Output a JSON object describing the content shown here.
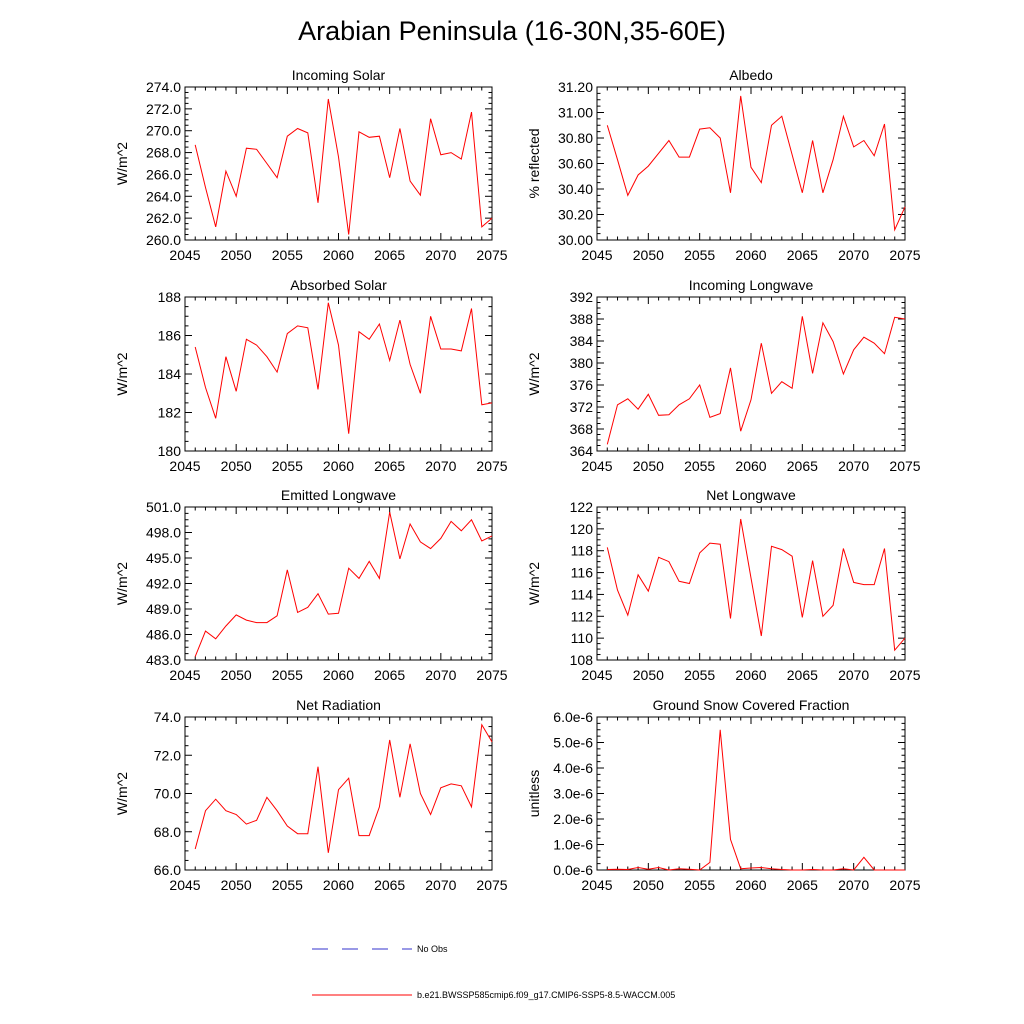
{
  "page": {
    "title": "Arabian Peninsula (16-30N,35-60E)",
    "line_color": "#ff0000",
    "obs_color": "#3333cc"
  },
  "legend": [
    {
      "label": "No Obs",
      "style": "dashed",
      "color": "#3333cc"
    },
    {
      "label": "b.e21.BWSSP585cmip6.f09_g17.CMIP6-SSP5-8.5-WACCM.005",
      "style": "solid",
      "color": "#ff0000"
    }
  ],
  "chart_data": [
    {
      "type": "line",
      "title": "Incoming Solar",
      "xlabel": "",
      "ylabel": "W/m^2",
      "xlim": [
        2045,
        2075
      ],
      "ylim": [
        260,
        274
      ],
      "xticks": [
        2045,
        2050,
        2055,
        2060,
        2065,
        2070,
        2075
      ],
      "yticks": [
        "260.0",
        "262.0",
        "264.0",
        "266.0",
        "268.0",
        "270.0",
        "272.0",
        "274.0"
      ],
      "series": [
        {
          "name": "b.e21.BWSSP585cmip6.f09_g17.CMIP6-SSP5-8.5-WACCM.005",
          "x": [
            2046,
            2047,
            2048,
            2049,
            2050,
            2051,
            2052,
            2053,
            2054,
            2055,
            2056,
            2057,
            2058,
            2059,
            2060,
            2061,
            2062,
            2063,
            2064,
            2065,
            2066,
            2067,
            2068,
            2069,
            2070,
            2071,
            2072,
            2073,
            2074,
            2075
          ],
          "values": [
            268.7,
            264.8,
            261.2,
            266.3,
            264.0,
            268.4,
            268.3,
            267.0,
            265.7,
            269.5,
            270.2,
            269.8,
            263.4,
            272.9,
            267.6,
            260.5,
            269.9,
            269.4,
            269.5,
            265.7,
            270.2,
            265.4,
            264.1,
            271.1,
            267.8,
            268.0,
            267.4,
            271.7,
            261.2,
            262.0
          ]
        }
      ]
    },
    {
      "type": "line",
      "title": "Albedo",
      "xlabel": "",
      "ylabel": "% reflected",
      "xlim": [
        2045,
        2075
      ],
      "ylim": [
        30.0,
        31.2
      ],
      "xticks": [
        2045,
        2050,
        2055,
        2060,
        2065,
        2070,
        2075
      ],
      "yticks": [
        "30.00",
        "30.20",
        "30.40",
        "30.60",
        "30.80",
        "31.00",
        "31.20"
      ],
      "series": [
        {
          "name": "b.e21.BWSSP585cmip6.f09_g17.CMIP6-SSP5-8.5-WACCM.005",
          "x": [
            2046,
            2047,
            2048,
            2049,
            2050,
            2051,
            2052,
            2053,
            2054,
            2055,
            2056,
            2057,
            2058,
            2059,
            2060,
            2061,
            2062,
            2063,
            2064,
            2065,
            2066,
            2067,
            2068,
            2069,
            2070,
            2071,
            2072,
            2073,
            2074,
            2075
          ],
          "values": [
            30.9,
            30.63,
            30.35,
            30.51,
            30.58,
            30.68,
            30.78,
            30.65,
            30.65,
            30.87,
            30.88,
            30.8,
            30.37,
            31.13,
            30.57,
            30.45,
            30.9,
            30.97,
            30.67,
            30.37,
            30.78,
            30.37,
            30.63,
            30.97,
            30.73,
            30.78,
            30.66,
            30.91,
            30.08,
            30.26
          ]
        }
      ]
    },
    {
      "type": "line",
      "title": "Absorbed Solar",
      "xlabel": "",
      "ylabel": "W/m^2",
      "xlim": [
        2045,
        2075
      ],
      "ylim": [
        180,
        188
      ],
      "xticks": [
        2045,
        2050,
        2055,
        2060,
        2065,
        2070,
        2075
      ],
      "yticks": [
        "180",
        "182",
        "184",
        "186",
        "188"
      ],
      "series": [
        {
          "name": "b.e21.BWSSP585cmip6.f09_g17.CMIP6-SSP5-8.5-WACCM.005",
          "x": [
            2046,
            2047,
            2048,
            2049,
            2050,
            2051,
            2052,
            2053,
            2054,
            2055,
            2056,
            2057,
            2058,
            2059,
            2060,
            2061,
            2062,
            2063,
            2064,
            2065,
            2066,
            2067,
            2068,
            2069,
            2070,
            2071,
            2072,
            2073,
            2074,
            2075
          ],
          "values": [
            185.4,
            183.3,
            181.7,
            184.9,
            183.1,
            185.8,
            185.5,
            184.9,
            184.1,
            186.1,
            186.5,
            186.4,
            183.2,
            187.7,
            185.5,
            180.9,
            186.2,
            185.8,
            186.6,
            184.7,
            186.8,
            184.5,
            183.0,
            187.0,
            185.3,
            185.3,
            185.2,
            187.4,
            182.4,
            182.5
          ]
        }
      ]
    },
    {
      "type": "line",
      "title": "Incoming Longwave",
      "xlabel": "",
      "ylabel": "W/m^2",
      "xlim": [
        2045,
        2075
      ],
      "ylim": [
        364,
        392
      ],
      "xticks": [
        2045,
        2050,
        2055,
        2060,
        2065,
        2070,
        2075
      ],
      "yticks": [
        "364",
        "368",
        "372",
        "376",
        "380",
        "384",
        "388",
        "392"
      ],
      "series": [
        {
          "name": "b.e21.BWSSP585cmip6.f09_g17.CMIP6-SSP5-8.5-WACCM.005",
          "x": [
            2046,
            2047,
            2048,
            2049,
            2050,
            2051,
            2052,
            2053,
            2054,
            2055,
            2056,
            2057,
            2058,
            2059,
            2060,
            2061,
            2062,
            2063,
            2064,
            2065,
            2066,
            2067,
            2068,
            2069,
            2070,
            2071,
            2072,
            2073,
            2074,
            2075
          ],
          "values": [
            365.2,
            372.4,
            373.5,
            371.6,
            374.3,
            370.5,
            370.6,
            372.4,
            373.5,
            376.0,
            370.1,
            370.8,
            379.1,
            367.6,
            373.3,
            383.6,
            374.5,
            376.6,
            375.4,
            388.5,
            378.1,
            387.3,
            383.9,
            378.0,
            382.4,
            384.7,
            383.6,
            381.7,
            388.3,
            388.0
          ]
        }
      ]
    },
    {
      "type": "line",
      "title": "Emitted Longwave",
      "xlabel": "",
      "ylabel": "W/m^2",
      "xlim": [
        2045,
        2075
      ],
      "ylim": [
        483,
        501
      ],
      "xticks": [
        2045,
        2050,
        2055,
        2060,
        2065,
        2070,
        2075
      ],
      "yticks": [
        "483.0",
        "486.0",
        "489.0",
        "492.0",
        "495.0",
        "498.0",
        "501.0"
      ],
      "series": [
        {
          "name": "b.e21.BWSSP585cmip6.f09_g17.CMIP6-SSP5-8.5-WACCM.005",
          "x": [
            2046,
            2047,
            2048,
            2049,
            2050,
            2051,
            2052,
            2053,
            2054,
            2055,
            2056,
            2057,
            2058,
            2059,
            2060,
            2061,
            2062,
            2063,
            2064,
            2065,
            2066,
            2067,
            2068,
            2069,
            2070,
            2071,
            2072,
            2073,
            2074,
            2075
          ],
          "values": [
            483.4,
            486.4,
            485.5,
            487.0,
            488.3,
            487.7,
            487.4,
            487.4,
            488.2,
            493.6,
            488.6,
            489.2,
            490.8,
            488.4,
            488.5,
            493.8,
            492.6,
            494.6,
            492.6,
            500.4,
            494.9,
            499.0,
            496.9,
            496.1,
            497.3,
            499.3,
            498.2,
            499.5,
            497.0,
            497.6
          ]
        }
      ]
    },
    {
      "type": "line",
      "title": "Net Longwave",
      "xlabel": "",
      "ylabel": "W/m^2",
      "xlim": [
        2045,
        2075
      ],
      "ylim": [
        108,
        122
      ],
      "xticks": [
        2045,
        2050,
        2055,
        2060,
        2065,
        2070,
        2075
      ],
      "yticks": [
        "108",
        "110",
        "112",
        "114",
        "116",
        "118",
        "120",
        "122"
      ],
      "series": [
        {
          "name": "b.e21.BWSSP585cmip6.f09_g17.CMIP6-SSP5-8.5-WACCM.005",
          "x": [
            2046,
            2047,
            2048,
            2049,
            2050,
            2051,
            2052,
            2053,
            2054,
            2055,
            2056,
            2057,
            2058,
            2059,
            2060,
            2061,
            2062,
            2063,
            2064,
            2065,
            2066,
            2067,
            2068,
            2069,
            2070,
            2071,
            2072,
            2073,
            2074,
            2075
          ],
          "values": [
            118.3,
            114.4,
            112.1,
            115.8,
            114.3,
            117.4,
            117.0,
            115.2,
            115.0,
            117.8,
            118.7,
            118.6,
            111.8,
            120.9,
            115.5,
            110.2,
            118.4,
            118.1,
            117.5,
            111.9,
            117.1,
            112.0,
            113.0,
            118.2,
            115.1,
            114.9,
            114.9,
            118.2,
            108.9,
            110.0
          ]
        }
      ]
    },
    {
      "type": "line",
      "title": "Net Radiation",
      "xlabel": "",
      "ylabel": "W/m^2",
      "xlim": [
        2045,
        2075
      ],
      "ylim": [
        66,
        74
      ],
      "xticks": [
        2045,
        2050,
        2055,
        2060,
        2065,
        2070,
        2075
      ],
      "yticks": [
        "66.0",
        "68.0",
        "70.0",
        "72.0",
        "74.0"
      ],
      "series": [
        {
          "name": "b.e21.BWSSP585cmip6.f09_g17.CMIP6-SSP5-8.5-WACCM.005",
          "x": [
            2046,
            2047,
            2048,
            2049,
            2050,
            2051,
            2052,
            2053,
            2054,
            2055,
            2056,
            2057,
            2058,
            2059,
            2060,
            2061,
            2062,
            2063,
            2064,
            2065,
            2066,
            2067,
            2068,
            2069,
            2070,
            2071,
            2072,
            2073,
            2074,
            2075
          ],
          "values": [
            67.1,
            69.1,
            69.7,
            69.1,
            68.9,
            68.4,
            68.6,
            69.8,
            69.1,
            68.3,
            67.9,
            67.9,
            71.4,
            66.9,
            70.2,
            70.8,
            67.8,
            67.8,
            69.3,
            72.8,
            69.8,
            72.6,
            70.0,
            68.9,
            70.3,
            70.5,
            70.4,
            69.3,
            73.6,
            72.7
          ]
        }
      ]
    },
    {
      "type": "line",
      "title": "Ground Snow Covered Fraction",
      "xlabel": "",
      "ylabel": "unitless",
      "xlim": [
        2045,
        2075
      ],
      "ylim": [
        0,
        6e-06
      ],
      "xticks": [
        2045,
        2050,
        2055,
        2060,
        2065,
        2070,
        2075
      ],
      "yticks": [
        "0.0e-6",
        "1.0e-6",
        "2.0e-6",
        "3.0e-6",
        "4.0e-6",
        "5.0e-6",
        "6.0e-6"
      ],
      "series": [
        {
          "name": "b.e21.BWSSP585cmip6.f09_g17.CMIP6-SSP5-8.5-WACCM.005",
          "x": [
            2046,
            2047,
            2048,
            2049,
            2050,
            2051,
            2052,
            2053,
            2054,
            2055,
            2056,
            2057,
            2058,
            2059,
            2060,
            2061,
            2062,
            2063,
            2064,
            2065,
            2066,
            2067,
            2068,
            2069,
            2070,
            2071,
            2072,
            2073,
            2074,
            2075
          ],
          "values": [
            2e-08,
            3e-08,
            2e-08,
            1e-07,
            3e-08,
            1e-07,
            0.0,
            5e-08,
            3e-08,
            0.0,
            3e-07,
            5.5e-06,
            1.2e-06,
            5e-08,
            8e-08,
            1e-07,
            5e-08,
            2e-08,
            0.0,
            0.0,
            2e-08,
            0.0,
            0.0,
            5e-08,
            0.0,
            5e-07,
            0.0,
            0.0,
            0.0,
            0.0
          ]
        }
      ]
    }
  ]
}
